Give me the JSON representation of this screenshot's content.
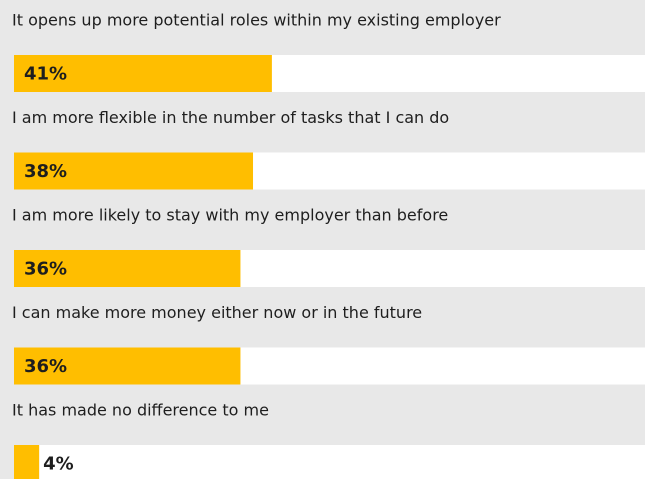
{
  "chart_data": {
    "type": "bar",
    "orientation": "horizontal",
    "categories": [
      "It opens up more potential roles within my existing employer",
      "I am more flexible in the number of tasks that I can do",
      "I am more likely to stay with my employer than before",
      "I can make more money either now or in the future",
      "It has made no difference to me"
    ],
    "values": [
      41,
      38,
      36,
      36,
      4
    ],
    "value_labels": [
      "41%",
      "38%",
      "36%",
      "36%",
      "4%"
    ],
    "color": "#ffbe00",
    "xlim": [
      0,
      100
    ]
  }
}
